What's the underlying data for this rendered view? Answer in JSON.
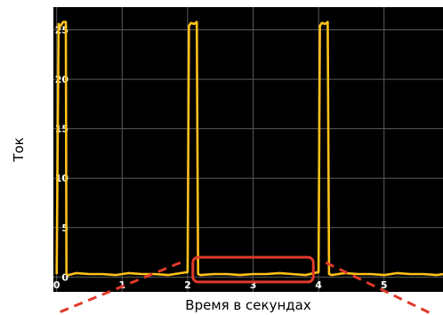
{
  "chart_data": {
    "type": "line",
    "title": "",
    "xlabel": "Время в секундах",
    "ylabel": "Ток",
    "xlim": [
      -0.05,
      5.9
    ],
    "ylim": [
      -1.5,
      27.3
    ],
    "x_ticks": [
      0,
      1,
      2,
      3,
      4,
      5
    ],
    "y_ticks": [
      0,
      5,
      10,
      15,
      20,
      25
    ],
    "grid": true,
    "legend": "none",
    "colors": {
      "background": "#000000",
      "grid": "#5a5a5a",
      "line": "#ffc21a",
      "highlight": "#e03a2a",
      "callout": "#e03a2a"
    },
    "series": [
      {
        "x": [
          0.0,
          0.03,
          0.06,
          0.1,
          0.14,
          0.15,
          0.18,
          0.3,
          0.5,
          0.7,
          0.9,
          1.1,
          1.3,
          1.5,
          1.7,
          1.9,
          2.0,
          2.02,
          2.05,
          2.1,
          2.14,
          2.16,
          2.2,
          2.4,
          2.6,
          2.8,
          3.0,
          3.2,
          3.4,
          3.6,
          3.8,
          4.0,
          4.02,
          4.05,
          4.1,
          4.14,
          4.16,
          4.2,
          4.4,
          4.6,
          4.8,
          5.0,
          5.2,
          5.4,
          5.6,
          5.8,
          5.9
        ],
        "y": [
          0.3,
          25.6,
          25.4,
          25.8,
          25.8,
          0.3,
          0.2,
          0.4,
          0.3,
          0.3,
          0.2,
          0.4,
          0.3,
          0.3,
          0.2,
          0.4,
          0.5,
          25.4,
          25.7,
          25.6,
          25.8,
          0.3,
          0.2,
          0.3,
          0.3,
          0.2,
          0.3,
          0.3,
          0.4,
          0.3,
          0.2,
          0.5,
          25.4,
          25.7,
          25.6,
          25.8,
          0.3,
          0.2,
          0.4,
          0.3,
          0.3,
          0.2,
          0.4,
          0.3,
          0.3,
          0.2,
          0.3
        ]
      }
    ],
    "highlight_region": {
      "x": [
        2.08,
        3.92
      ],
      "y": [
        -0.5,
        2.0
      ]
    }
  }
}
